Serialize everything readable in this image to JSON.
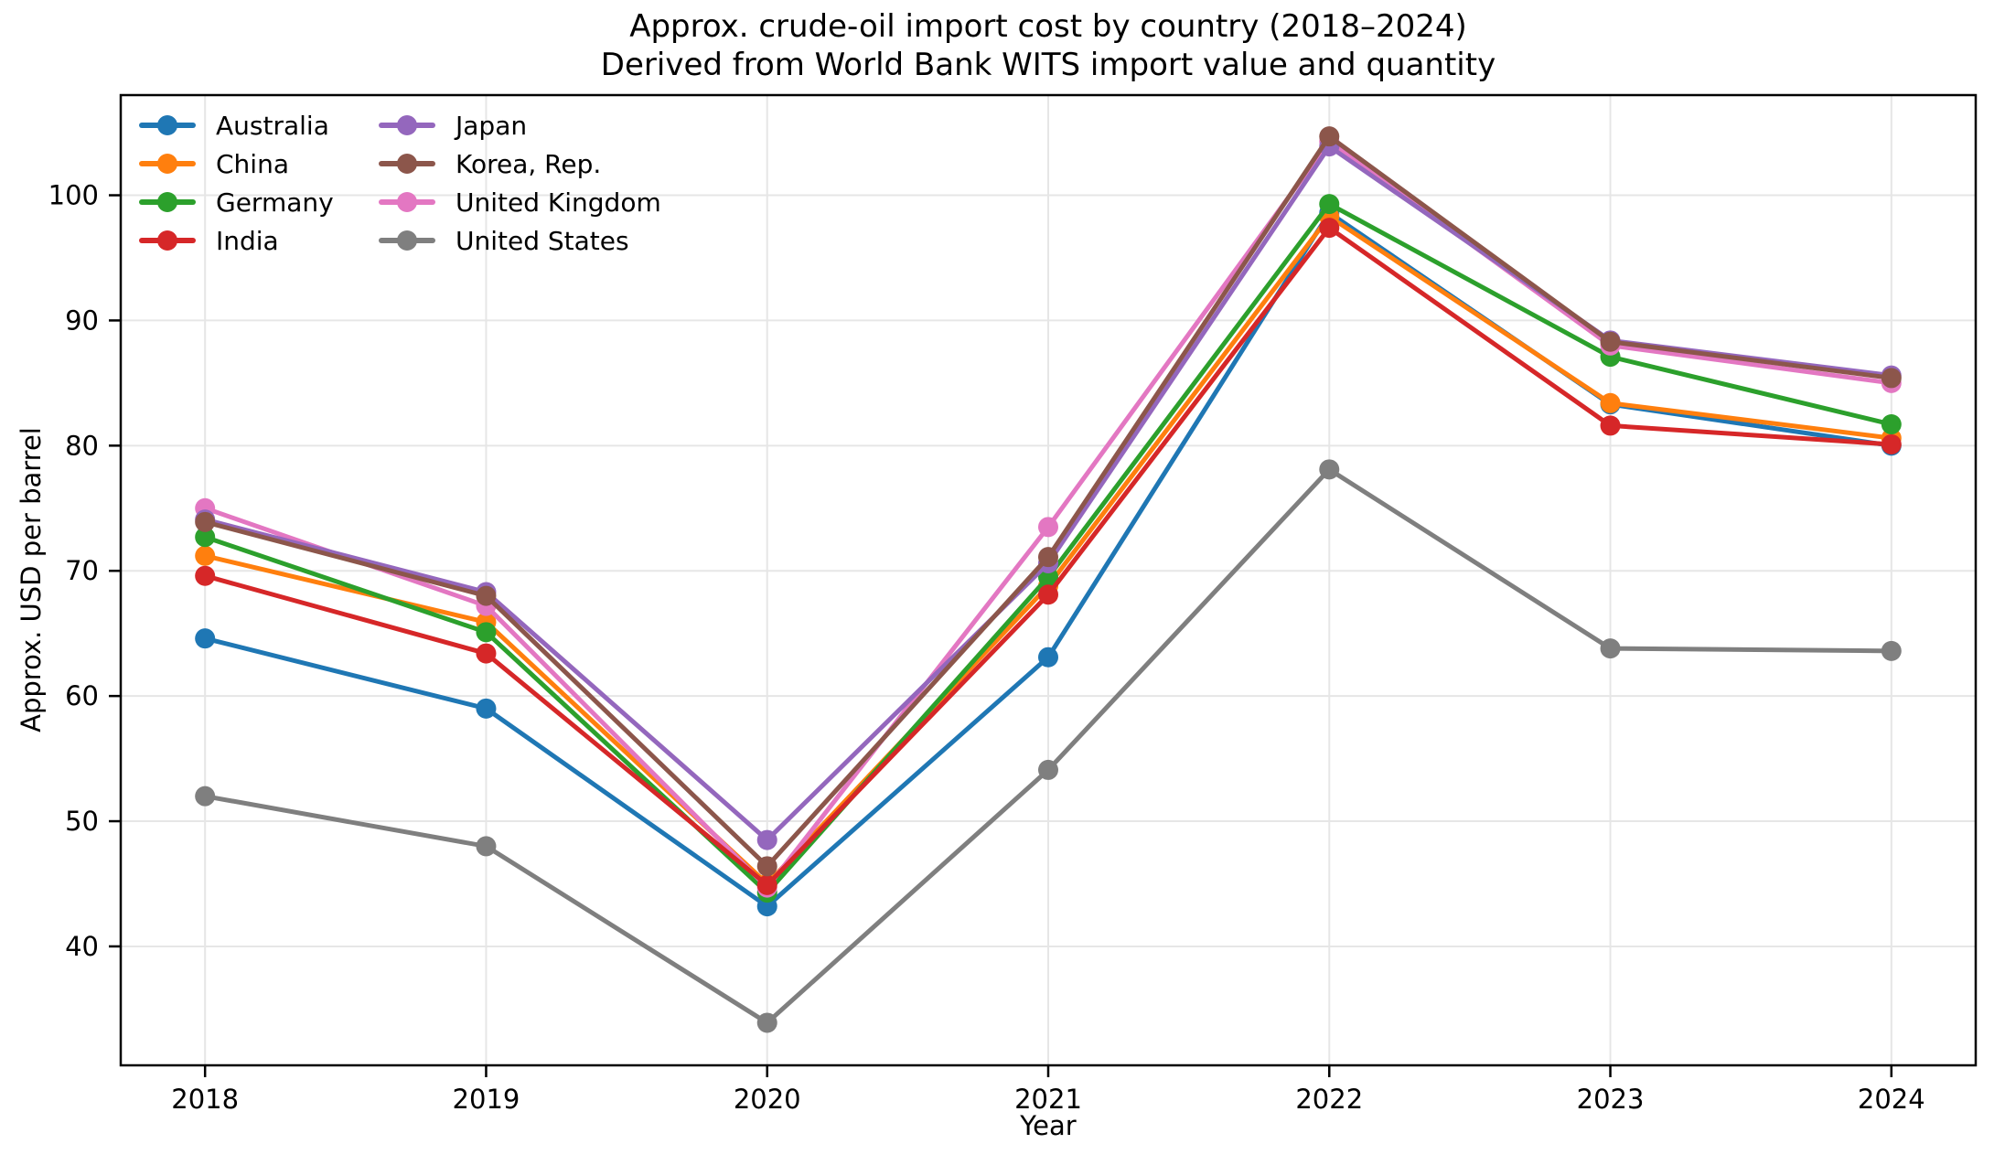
{
  "chart_data": {
    "type": "line",
    "title": "Approx. crude-oil import cost by country (2018–2024)",
    "subtitle": "Derived from World Bank WITS import value and quantity",
    "xlabel": "Year",
    "ylabel": "Approx. USD per barrel",
    "x": [
      2018,
      2019,
      2020,
      2021,
      2022,
      2023,
      2024
    ],
    "yticks": [
      40,
      50,
      60,
      70,
      80,
      90,
      100
    ],
    "xlim": [
      2017.7,
      2024.3
    ],
    "ylim": [
      30.5,
      108.0
    ],
    "grid": true,
    "background": "#ffffff",
    "grid_color": "#e6e6e6",
    "axis_color": "#000000",
    "legend": {
      "position": "upper-left",
      "ncol": 2,
      "columns": [
        [
          "Australia",
          "China",
          "Germany",
          "India"
        ],
        [
          "Japan",
          "Korea, Rep.",
          "United Kingdom",
          "United States"
        ]
      ]
    },
    "series": [
      {
        "name": "Australia",
        "color": "#1f77b4",
        "values": [
          64.6,
          59.0,
          43.2,
          63.1,
          98.6,
          83.3,
          80.0
        ]
      },
      {
        "name": "China",
        "color": "#ff7f0e",
        "values": [
          71.2,
          65.9,
          45.0,
          68.8,
          98.3,
          83.4,
          80.6
        ]
      },
      {
        "name": "Germany",
        "color": "#2ca02c",
        "values": [
          72.7,
          65.1,
          44.3,
          69.5,
          99.3,
          87.1,
          81.7
        ]
      },
      {
        "name": "India",
        "color": "#d62728",
        "values": [
          69.6,
          63.4,
          44.9,
          68.1,
          97.4,
          81.6,
          80.1
        ]
      },
      {
        "name": "Japan",
        "color": "#9467bd",
        "values": [
          74.1,
          68.3,
          48.5,
          70.6,
          103.9,
          88.4,
          85.6
        ]
      },
      {
        "name": "Korea, Rep.",
        "color": "#8c564b",
        "values": [
          73.9,
          68.0,
          46.4,
          71.1,
          104.7,
          88.3,
          85.4
        ]
      },
      {
        "name": "United Kingdom",
        "color": "#e377c2",
        "values": [
          75.0,
          67.2,
          44.7,
          73.5,
          104.3,
          88.0,
          85.0
        ]
      },
      {
        "name": "United States",
        "color": "#7f7f7f",
        "values": [
          52.0,
          48.0,
          33.9,
          54.1,
          78.1,
          63.8,
          63.6
        ]
      }
    ],
    "draw_order": [
      "Australia",
      "China",
      "Germany",
      "United Kingdom",
      "India",
      "Japan",
      "Korea, Rep.",
      "United States"
    ]
  }
}
